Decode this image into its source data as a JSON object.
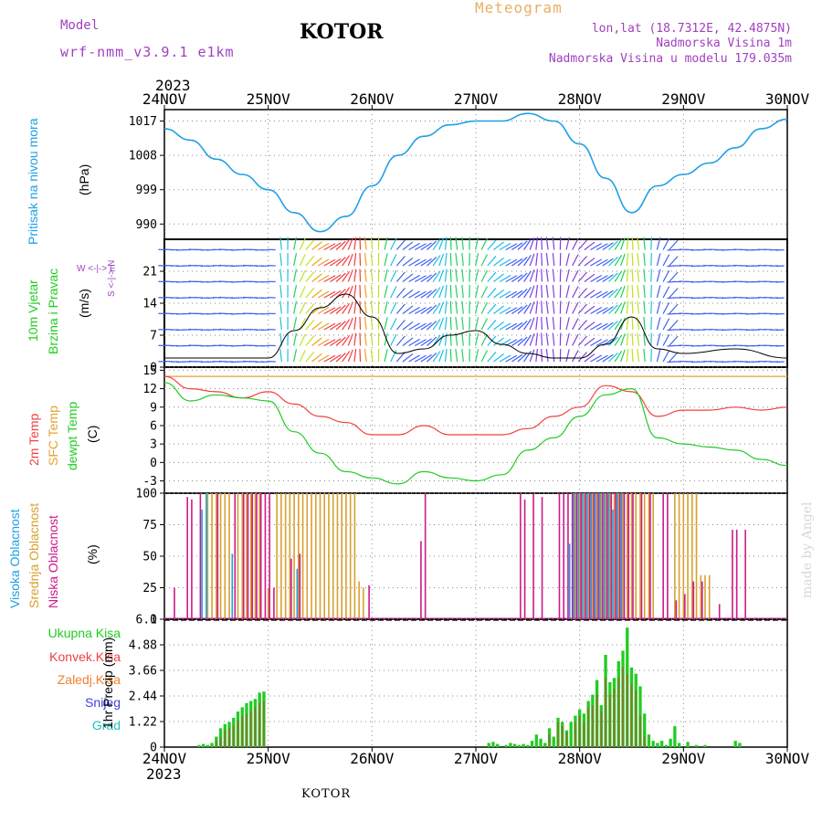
{
  "header": {
    "model_label": "Model",
    "model_name": "wrf-nmm_v3.9.1 e1km",
    "city": "KOTOR",
    "meteogram": "Meteogram",
    "lonlat": "lon,lat (18.7312E, 42.4875N)",
    "elevation": "Nadmorska Visina 1m",
    "model_elevation": "Nadmorska Visina u modelu 179.035m",
    "year": "2023",
    "footer_city": "KOTOR",
    "made_by": "made by Angel"
  },
  "colors": {
    "pressure": "#1ea0e6",
    "temp2m": "#f04040",
    "sfc": "#e8a030",
    "dewpt": "#22cc22",
    "cloud_high": "#1ea0e6",
    "cloud_mid": "#d8a030",
    "cloud_low": "#cc1a8a",
    "rain_total": "#22cc22",
    "rain_conv": "#f04040",
    "frz": "#f08030",
    "snow": "#4040e0",
    "grad": "#20c0c0",
    "purple": "#a040c0",
    "orange_title": "#e8b060",
    "grid": "#888888"
  },
  "panels": {
    "pressure": {
      "labels": [
        "Pritisak na nivou mora",
        "(hPa)"
      ]
    },
    "wind": {
      "labels": [
        "10m Vjetar",
        "Brzina i Pravac",
        "(m/s)"
      ],
      "compass": "W <-|-> E",
      "compass_ns": "S <-|-> N"
    },
    "temp": {
      "labels": [
        "2m Temp",
        "SFC Temp",
        "dewpt Temp",
        "(C)"
      ]
    },
    "cloud": {
      "labels": [
        "Visoka Oblacnost",
        "Srednja Oblacnost",
        "Niska Oblacnost",
        "(%)"
      ]
    },
    "precip": {
      "legend": [
        "Ukupna Kisa",
        "Konvek.Kisa",
        "Zaledj.Kisa",
        "Snijeg",
        "Grad"
      ],
      "ylabel": "1hr Precip (mm)"
    }
  },
  "chart_data": {
    "type": "line",
    "x_axis": {
      "days": [
        "24NOV",
        "25NOV",
        "26NOV",
        "27NOV",
        "28NOV",
        "29NOV",
        "30NOV"
      ],
      "year": "2023",
      "range_hours": [
        0,
        144
      ]
    },
    "pressure": {
      "ylabel": "(hPa)",
      "yticks": [
        "990",
        "999",
        "1008",
        "1017"
      ],
      "ylim": [
        986,
        1020
      ],
      "x_hours": [
        0,
        6,
        12,
        18,
        24,
        30,
        36,
        42,
        48,
        54,
        60,
        66,
        72,
        78,
        84,
        90,
        96,
        102,
        108,
        114,
        120,
        126,
        132,
        138,
        144
      ],
      "values": [
        1015,
        1012,
        1007,
        1003,
        999,
        993,
        988,
        992,
        1000,
        1008,
        1013,
        1016,
        1017,
        1017,
        1019,
        1017,
        1011,
        1002,
        993,
        1000,
        1003,
        1006,
        1010,
        1015,
        1017.5
      ]
    },
    "wind": {
      "ylabel": "(m/s)",
      "yticks": [
        "0",
        "7",
        "14",
        "21"
      ],
      "ylim": [
        0,
        28
      ],
      "x_hours": [
        0,
        12,
        24,
        30,
        36,
        42,
        48,
        54,
        60,
        66,
        72,
        78,
        84,
        90,
        96,
        102,
        108,
        114,
        120,
        132,
        144
      ],
      "speed": [
        2,
        2,
        2,
        8,
        13,
        16,
        11,
        3,
        4,
        7,
        8,
        5,
        3,
        2,
        2,
        5,
        11,
        4,
        3,
        4,
        2
      ]
    },
    "temperature": {
      "ylabel": "(C)",
      "yticks": [
        "-3",
        "0",
        "3",
        "6",
        "9",
        "12",
        "15"
      ],
      "ylim": [
        -5,
        15.5
      ],
      "x_hours": [
        0,
        6,
        12,
        18,
        24,
        30,
        36,
        42,
        48,
        54,
        60,
        66,
        72,
        78,
        84,
        90,
        96,
        102,
        108,
        114,
        120,
        126,
        132,
        138,
        144
      ],
      "temp_2m": [
        14,
        12,
        11.5,
        10.5,
        11.5,
        9.5,
        7.5,
        6.5,
        4.5,
        4.5,
        6,
        4.5,
        4.5,
        4.5,
        5.5,
        7.5,
        9,
        12.5,
        11.5,
        7.5,
        8.5,
        8.5,
        9,
        8.5,
        9
      ],
      "sfc_temp": [
        14,
        14,
        14,
        14,
        14,
        14,
        14,
        14,
        14,
        14,
        14,
        14,
        14,
        14,
        14,
        14,
        14,
        14,
        14,
        14,
        14,
        14,
        14,
        14,
        14
      ],
      "dewpt": [
        13,
        10,
        11,
        10.5,
        10,
        5,
        1.5,
        -1.5,
        -2.5,
        -3.5,
        -1.5,
        -2.5,
        -3,
        -2,
        2,
        4,
        7.5,
        11,
        12,
        4,
        3,
        2.5,
        2,
        0.5,
        -0.5
      ]
    },
    "clouds": {
      "ylabel": "(%)",
      "yticks": [
        "0",
        "25",
        "50",
        "75",
        "100"
      ],
      "ylim": [
        0,
        100
      ],
      "high": {
        "x_hours": [
          9,
          10,
          16,
          31,
          94,
          95,
          96,
          97,
          98,
          99,
          100,
          101,
          102,
          103,
          104,
          105,
          106
        ],
        "values": [
          87,
          100,
          52,
          40,
          60,
          100,
          100,
          100,
          100,
          100,
          100,
          100,
          100,
          100,
          87,
          100,
          100
        ]
      },
      "mid": {
        "x_hours": [
          10,
          11,
          12,
          13,
          14,
          15,
          17,
          18,
          19,
          20,
          21,
          22,
          24,
          26,
          27,
          28,
          29,
          30,
          31,
          32,
          33,
          34,
          35,
          36,
          37,
          38,
          39,
          40,
          41,
          42,
          43,
          44,
          45,
          46,
          95,
          96,
          97,
          98,
          99,
          100,
          101,
          102,
          103,
          104,
          105,
          106,
          107,
          108,
          109,
          110,
          111,
          112,
          113,
          118,
          119,
          120,
          121,
          122,
          123,
          124,
          125,
          126
        ],
        "values": [
          100,
          100,
          100,
          100,
          100,
          100,
          100,
          100,
          100,
          100,
          100,
          100,
          25,
          100,
          100,
          100,
          100,
          100,
          100,
          100,
          100,
          100,
          100,
          100,
          100,
          100,
          100,
          100,
          100,
          100,
          100,
          100,
          30,
          25,
          100,
          100,
          100,
          100,
          100,
          100,
          100,
          100,
          100,
          100,
          100,
          100,
          100,
          100,
          100,
          100,
          100,
          100,
          100,
          100,
          100,
          100,
          100,
          100,
          100,
          35,
          35,
          35
        ]
      },
      "low": {
        "x_hours": [
          2,
          5,
          6,
          8,
          12,
          16,
          18,
          19,
          20,
          21,
          22,
          23,
          24,
          25,
          29,
          31,
          47,
          59,
          60,
          82,
          83,
          85,
          87,
          91,
          92,
          93,
          94,
          95,
          96,
          97,
          98,
          99,
          100,
          101,
          102,
          103,
          104,
          105,
          106,
          107,
          108,
          110,
          112,
          115,
          116,
          118,
          120,
          122,
          124,
          128,
          131,
          132,
          134
        ],
        "values": [
          25,
          97,
          95,
          100,
          100,
          100,
          100,
          100,
          100,
          100,
          100,
          100,
          100,
          25,
          48,
          52,
          27,
          62,
          100,
          100,
          95,
          100,
          97,
          100,
          100,
          100,
          100,
          100,
          100,
          100,
          100,
          100,
          100,
          100,
          100,
          100,
          100,
          100,
          100,
          100,
          100,
          100,
          100,
          100,
          100,
          15,
          20,
          30,
          30,
          12,
          71,
          71,
          71
        ]
      }
    },
    "precip": {
      "ylabel": "1hr Precip (mm)",
      "yticks": [
        "0",
        "1.22",
        "2.44",
        "3.66",
        "4.88",
        "6.1"
      ],
      "ylim": [
        0,
        6.1
      ],
      "total": {
        "x_hours": [
          8,
          9,
          10,
          11,
          12,
          13,
          14,
          15,
          16,
          17,
          18,
          19,
          20,
          21,
          22,
          23,
          75,
          76,
          77,
          79,
          80,
          81,
          82,
          83,
          84,
          85,
          86,
          87,
          88,
          89,
          90,
          91,
          92,
          93,
          94,
          95,
          96,
          97,
          98,
          99,
          100,
          101,
          102,
          103,
          104,
          105,
          106,
          107,
          108,
          109,
          110,
          111,
          112,
          113,
          114,
          115,
          116,
          117,
          118,
          119,
          121,
          123,
          125,
          132,
          133
        ],
        "values": [
          0.1,
          0.15,
          0.1,
          0.2,
          0.5,
          0.9,
          1.1,
          1.2,
          1.4,
          1.7,
          1.9,
          2.1,
          2.2,
          2.3,
          2.6,
          2.65,
          0.2,
          0.25,
          0.15,
          0.1,
          0.2,
          0.15,
          0.1,
          0.15,
          0.1,
          0.3,
          0.6,
          0.4,
          0.2,
          0.9,
          0.5,
          1.4,
          1.2,
          0.8,
          1.2,
          1.5,
          1.8,
          1.6,
          2.2,
          2.5,
          3.2,
          2.0,
          4.4,
          3.1,
          3.3,
          4.1,
          4.6,
          5.7,
          3.8,
          3.5,
          2.9,
          1.6,
          0.6,
          0.3,
          0.2,
          0.3,
          0.1,
          0.4,
          1.0,
          0.2,
          0.25,
          0.1,
          0.1,
          0.3,
          0.2
        ]
      },
      "convective": {
        "x_hours": [
          12,
          13,
          14,
          15,
          16,
          17,
          18,
          19,
          20,
          21,
          22,
          23,
          89,
          91,
          92,
          93,
          95,
          96,
          97,
          98,
          99,
          100,
          101,
          102,
          103,
          104,
          105,
          106,
          107,
          108,
          109,
          110,
          111
        ],
        "values": [
          0.3,
          0.5,
          0.8,
          0.9,
          1.0,
          1.3,
          1.5,
          1.6,
          1.7,
          1.9,
          2.1,
          2.2,
          0.6,
          1.2,
          1.0,
          0.7,
          1.2,
          1.5,
          1.2,
          1.9,
          2.0,
          2.5,
          1.7,
          3.3,
          2.5,
          2.8,
          3.3,
          3.8,
          3.5,
          3.0,
          2.7,
          1.5,
          0.5
        ]
      }
    }
  }
}
